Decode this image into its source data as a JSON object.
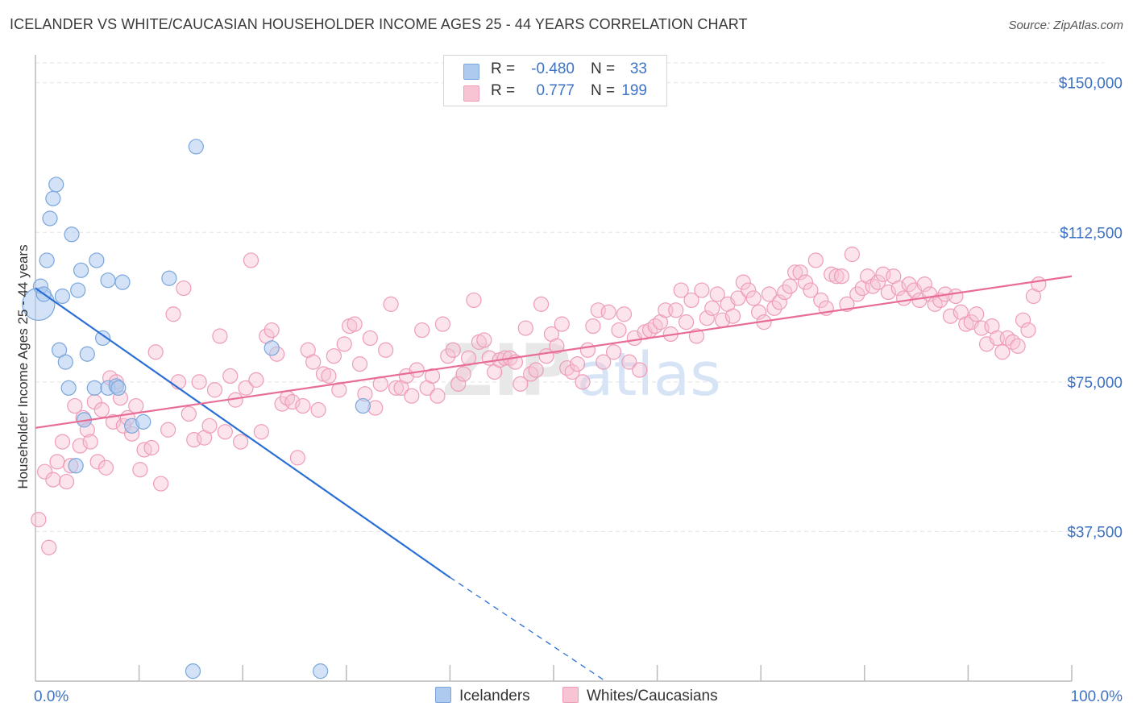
{
  "title": "ICELANDER VS WHITE/CAUCASIAN HOUSEHOLDER INCOME AGES 25 - 44 YEARS CORRELATION CHART",
  "source": "Source: ZipAtlas.com",
  "watermark": {
    "zip": "ZIP",
    "atlas": "atlas"
  },
  "colors": {
    "blue_fill": "#aecbef",
    "blue_stroke": "#7aa6dc",
    "blue_line": "#2b6fd6",
    "pink_fill": "#f7c4d4",
    "pink_stroke": "#ee9cb8",
    "pink_line": "#e86d96",
    "tick_text": "#3e73c4",
    "grid": "#e3e3e3"
  },
  "legend": {
    "rows": [
      {
        "r_label": "R =",
        "r_value": "-0.480",
        "n_label": "N =",
        "n_value": "33"
      },
      {
        "r_label": "R =",
        "r_value": "0.777",
        "n_label": "N =",
        "n_value": "199"
      }
    ]
  },
  "bottom_legend": [
    "Icelanders",
    "Whites/Caucasians"
  ],
  "chart_data": {
    "type": "scatter",
    "xlabel": "",
    "ylabel": "Householder Income Ages 25 - 44 years",
    "xlim": [
      0,
      100
    ],
    "ylim": [
      0,
      155000
    ],
    "x_tick_labels": [
      "0.0%",
      "100.0%"
    ],
    "y_ticks": [
      37500,
      75000,
      112500,
      150000
    ],
    "y_tick_labels": [
      "$37,500",
      "$75,000",
      "$112,500",
      "$150,000"
    ],
    "grid": true,
    "series": [
      {
        "name": "Icelanders",
        "color": "#aecbef",
        "trend": {
          "x": [
            0,
            40
          ],
          "y": [
            98500,
            26000
          ],
          "dashed_to": [
            55,
            0
          ]
        },
        "points": [
          [
            0.3,
            94500
          ],
          [
            0.5,
            99000
          ],
          [
            0.8,
            97000
          ],
          [
            1.1,
            105500
          ],
          [
            1.4,
            116000
          ],
          [
            1.7,
            121000
          ],
          [
            2.0,
            124500
          ],
          [
            2.3,
            83000
          ],
          [
            2.6,
            96500
          ],
          [
            2.9,
            80000
          ],
          [
            3.2,
            73500
          ],
          [
            3.5,
            112000
          ],
          [
            3.9,
            54000
          ],
          [
            4.1,
            98000
          ],
          [
            4.4,
            103000
          ],
          [
            4.7,
            65500
          ],
          [
            5.0,
            82000
          ],
          [
            5.7,
            73500
          ],
          [
            5.9,
            105500
          ],
          [
            6.5,
            86000
          ],
          [
            7.0,
            73500
          ],
          [
            7.0,
            100500
          ],
          [
            7.8,
            74000
          ],
          [
            8.0,
            73500
          ],
          [
            8.4,
            100000
          ],
          [
            9.3,
            64000
          ],
          [
            10.4,
            65000
          ],
          [
            12.9,
            101000
          ],
          [
            15.2,
            2500
          ],
          [
            15.5,
            134000
          ],
          [
            22.8,
            83500
          ],
          [
            27.5,
            2500
          ],
          [
            31.6,
            69000
          ]
        ]
      },
      {
        "name": "Whites/Caucasians",
        "color": "#f7c4d4",
        "trend": {
          "x": [
            0,
            100
          ],
          "y": [
            63500,
            101500
          ]
        },
        "points": [
          [
            0.3,
            40500
          ],
          [
            0.9,
            52500
          ],
          [
            1.3,
            33500
          ],
          [
            1.7,
            50500
          ],
          [
            2.1,
            55000
          ],
          [
            2.6,
            60000
          ],
          [
            3.0,
            50000
          ],
          [
            3.4,
            54000
          ],
          [
            3.8,
            69000
          ],
          [
            4.3,
            59000
          ],
          [
            4.6,
            66000
          ],
          [
            5.0,
            63000
          ],
          [
            5.3,
            60000
          ],
          [
            5.7,
            70000
          ],
          [
            6.0,
            55000
          ],
          [
            6.4,
            68000
          ],
          [
            6.8,
            53500
          ],
          [
            7.2,
            76000
          ],
          [
            7.5,
            65000
          ],
          [
            7.8,
            75000
          ],
          [
            8.2,
            71000
          ],
          [
            8.5,
            64000
          ],
          [
            8.9,
            66000
          ],
          [
            9.3,
            62000
          ],
          [
            9.7,
            69000
          ],
          [
            10.1,
            53000
          ],
          [
            10.5,
            58000
          ],
          [
            11.2,
            58500
          ],
          [
            11.6,
            82500
          ],
          [
            12.1,
            49500
          ],
          [
            12.8,
            63000
          ],
          [
            13.3,
            92000
          ],
          [
            13.8,
            75000
          ],
          [
            14.3,
            98500
          ],
          [
            14.8,
            67000
          ],
          [
            15.3,
            60500
          ],
          [
            15.8,
            75000
          ],
          [
            16.3,
            61000
          ],
          [
            16.8,
            64000
          ],
          [
            17.3,
            73000
          ],
          [
            17.8,
            86500
          ],
          [
            18.3,
            62500
          ],
          [
            18.8,
            76500
          ],
          [
            19.3,
            70500
          ],
          [
            19.8,
            60000
          ],
          [
            20.3,
            73500
          ],
          [
            20.8,
            105500
          ],
          [
            21.3,
            75500
          ],
          [
            21.8,
            62500
          ],
          [
            22.3,
            86500
          ],
          [
            22.8,
            88000
          ],
          [
            23.3,
            82000
          ],
          [
            23.8,
            69500
          ],
          [
            24.3,
            71000
          ],
          [
            24.8,
            70000
          ],
          [
            25.3,
            56000
          ],
          [
            25.8,
            69000
          ],
          [
            26.3,
            83000
          ],
          [
            26.8,
            80000
          ],
          [
            27.3,
            68000
          ],
          [
            27.8,
            77000
          ],
          [
            28.3,
            76500
          ],
          [
            28.8,
            81500
          ],
          [
            29.3,
            73000
          ],
          [
            29.8,
            84500
          ],
          [
            30.3,
            89000
          ],
          [
            30.8,
            89500
          ],
          [
            31.3,
            79500
          ],
          [
            31.8,
            72000
          ],
          [
            32.3,
            86000
          ],
          [
            32.8,
            68500
          ],
          [
            33.3,
            74500
          ],
          [
            33.8,
            83000
          ],
          [
            34.3,
            94500
          ],
          [
            34.8,
            73500
          ],
          [
            35.3,
            73500
          ],
          [
            35.8,
            76500
          ],
          [
            36.3,
            71500
          ],
          [
            36.8,
            78000
          ],
          [
            37.3,
            88000
          ],
          [
            37.8,
            73500
          ],
          [
            38.3,
            76500
          ],
          [
            38.8,
            71500
          ],
          [
            39.3,
            89500
          ],
          [
            39.8,
            81500
          ],
          [
            40.3,
            83000
          ],
          [
            40.8,
            74500
          ],
          [
            41.3,
            77000
          ],
          [
            41.8,
            81000
          ],
          [
            42.3,
            95500
          ],
          [
            42.8,
            85000
          ],
          [
            43.3,
            85500
          ],
          [
            43.8,
            81000
          ],
          [
            44.3,
            77500
          ],
          [
            44.8,
            80500
          ],
          [
            45.3,
            81000
          ],
          [
            45.8,
            81000
          ],
          [
            46.3,
            80000
          ],
          [
            46.8,
            74500
          ],
          [
            47.3,
            88500
          ],
          [
            47.8,
            77000
          ],
          [
            48.3,
            78000
          ],
          [
            48.8,
            94500
          ],
          [
            49.3,
            81500
          ],
          [
            49.8,
            87000
          ],
          [
            50.3,
            84000
          ],
          [
            50.8,
            89500
          ],
          [
            51.3,
            78500
          ],
          [
            51.8,
            77500
          ],
          [
            52.3,
            79500
          ],
          [
            52.8,
            75000
          ],
          [
            53.3,
            83000
          ],
          [
            53.8,
            89000
          ],
          [
            54.3,
            93000
          ],
          [
            54.8,
            80000
          ],
          [
            55.3,
            92500
          ],
          [
            55.8,
            82500
          ],
          [
            56.3,
            88000
          ],
          [
            56.8,
            92000
          ],
          [
            57.3,
            80000
          ],
          [
            57.8,
            86000
          ],
          [
            58.3,
            78000
          ],
          [
            58.8,
            87500
          ],
          [
            59.3,
            88000
          ],
          [
            59.8,
            89000
          ],
          [
            60.3,
            90000
          ],
          [
            60.8,
            93000
          ],
          [
            61.3,
            87000
          ],
          [
            61.8,
            93000
          ],
          [
            62.3,
            98000
          ],
          [
            62.8,
            90000
          ],
          [
            63.3,
            95500
          ],
          [
            63.8,
            86500
          ],
          [
            64.3,
            98000
          ],
          [
            64.8,
            91000
          ],
          [
            65.3,
            93500
          ],
          [
            65.8,
            97000
          ],
          [
            66.3,
            90500
          ],
          [
            66.8,
            94500
          ],
          [
            67.3,
            91500
          ],
          [
            67.8,
            96000
          ],
          [
            68.3,
            100000
          ],
          [
            68.8,
            98000
          ],
          [
            69.3,
            96000
          ],
          [
            69.8,
            92500
          ],
          [
            70.3,
            90000
          ],
          [
            70.8,
            97000
          ],
          [
            71.3,
            93500
          ],
          [
            71.8,
            95000
          ],
          [
            72.3,
            97500
          ],
          [
            72.8,
            99000
          ],
          [
            73.3,
            102500
          ],
          [
            73.8,
            102500
          ],
          [
            74.3,
            100000
          ],
          [
            74.8,
            98000
          ],
          [
            75.3,
            105500
          ],
          [
            75.8,
            95500
          ],
          [
            76.3,
            93500
          ],
          [
            76.8,
            102000
          ],
          [
            77.3,
            101500
          ],
          [
            77.8,
            101500
          ],
          [
            78.3,
            94500
          ],
          [
            78.8,
            107000
          ],
          [
            79.3,
            97000
          ],
          [
            79.8,
            98500
          ],
          [
            80.3,
            101500
          ],
          [
            80.8,
            99000
          ],
          [
            81.3,
            100000
          ],
          [
            81.8,
            102000
          ],
          [
            82.3,
            97500
          ],
          [
            82.8,
            101500
          ],
          [
            83.3,
            98500
          ],
          [
            83.8,
            96000
          ],
          [
            84.3,
            99500
          ],
          [
            84.8,
            98000
          ],
          [
            85.3,
            95500
          ],
          [
            85.8,
            99500
          ],
          [
            86.3,
            97000
          ],
          [
            86.8,
            94500
          ],
          [
            87.3,
            95500
          ],
          [
            87.8,
            97000
          ],
          [
            88.3,
            91500
          ],
          [
            88.8,
            96500
          ],
          [
            89.3,
            92500
          ],
          [
            89.8,
            89500
          ],
          [
            90.3,
            90000
          ],
          [
            90.8,
            92000
          ],
          [
            91.3,
            88500
          ],
          [
            91.8,
            84500
          ],
          [
            92.3,
            89000
          ],
          [
            92.8,
            86000
          ],
          [
            93.3,
            82500
          ],
          [
            93.8,
            86000
          ],
          [
            94.3,
            85000
          ],
          [
            94.8,
            84000
          ],
          [
            95.3,
            90500
          ],
          [
            95.8,
            88000
          ],
          [
            96.3,
            96500
          ],
          [
            96.8,
            99500
          ]
        ]
      }
    ]
  }
}
